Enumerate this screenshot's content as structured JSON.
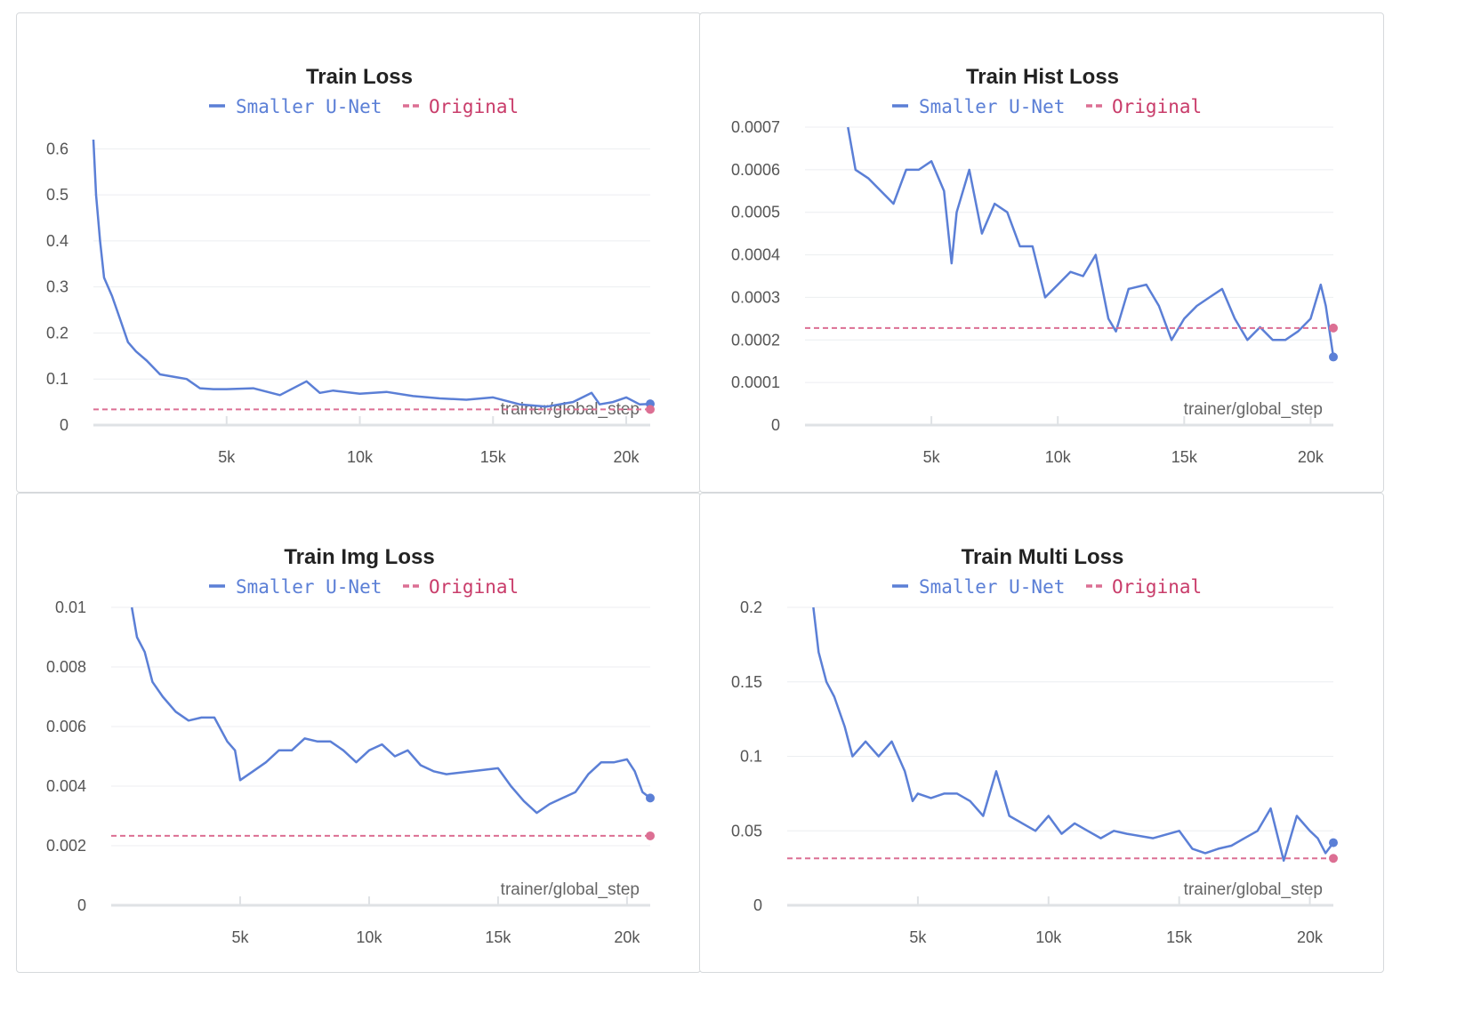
{
  "legend": {
    "series_a": "Smaller U-Net",
    "series_b": "Original"
  },
  "colors": {
    "series_a": "#5b7fd6",
    "series_b": "#dc6f93",
    "series_b_text": "#c93c6a",
    "grid": "#eceef0",
    "axis": "#dfe2e5"
  },
  "chart_data": [
    {
      "type": "line",
      "title": "Train Loss",
      "xlabel": "trainer/global_step",
      "xlim": [
        0,
        20900
      ],
      "ylim": [
        0,
        0.62
      ],
      "xticks": [
        {
          "v": 5000,
          "label": "5k"
        },
        {
          "v": 10000,
          "label": "10k"
        },
        {
          "v": 15000,
          "label": "15k"
        },
        {
          "v": 20000,
          "label": "20k"
        }
      ],
      "yticks": [
        {
          "v": 0,
          "label": "0"
        },
        {
          "v": 0.1,
          "label": "0.1"
        },
        {
          "v": 0.2,
          "label": "0.2"
        },
        {
          "v": 0.3,
          "label": "0.3"
        },
        {
          "v": 0.4,
          "label": "0.4"
        },
        {
          "v": 0.5,
          "label": "0.5"
        },
        {
          "v": 0.6,
          "label": "0.6"
        }
      ],
      "series": [
        {
          "name": "Smaller U-Net",
          "x": [
            0,
            100,
            250,
            400,
            700,
            1000,
            1300,
            1600,
            2000,
            2500,
            3000,
            3500,
            4000,
            4500,
            5000,
            6000,
            7000,
            8000,
            8500,
            9000,
            10000,
            11000,
            12000,
            13000,
            14000,
            15000,
            16000,
            17000,
            18000,
            18700,
            19000,
            19500,
            20000,
            20500,
            20900
          ],
          "y": [
            0.62,
            0.5,
            0.4,
            0.32,
            0.28,
            0.23,
            0.18,
            0.16,
            0.14,
            0.11,
            0.105,
            0.1,
            0.08,
            0.078,
            0.078,
            0.08,
            0.065,
            0.095,
            0.07,
            0.075,
            0.068,
            0.072,
            0.063,
            0.058,
            0.055,
            0.06,
            0.045,
            0.04,
            0.05,
            0.07,
            0.045,
            0.05,
            0.06,
            0.045,
            0.046
          ],
          "color": "#5b7fd6",
          "dashed": false
        },
        {
          "name": "Original",
          "x": [
            0,
            20900
          ],
          "y": [
            0.034,
            0.034
          ],
          "color": "#dc6f93",
          "dashed": true
        }
      ]
    },
    {
      "type": "line",
      "title": "Train Hist Loss",
      "xlabel": "trainer/global_step",
      "xlim": [
        0,
        20900
      ],
      "ylim": [
        0,
        0.0007
      ],
      "xticks": [
        {
          "v": 5000,
          "label": "5k"
        },
        {
          "v": 10000,
          "label": "10k"
        },
        {
          "v": 15000,
          "label": "15k"
        },
        {
          "v": 20000,
          "label": "20k"
        }
      ],
      "yticks": [
        {
          "v": 0,
          "label": "0"
        },
        {
          "v": 0.0001,
          "label": "0.0001"
        },
        {
          "v": 0.0002,
          "label": "0.0002"
        },
        {
          "v": 0.0003,
          "label": "0.0003"
        },
        {
          "v": 0.0004,
          "label": "0.0004"
        },
        {
          "v": 0.0005,
          "label": "0.0005"
        },
        {
          "v": 0.0006,
          "label": "0.0006"
        },
        {
          "v": 0.0007,
          "label": "0.0007"
        }
      ],
      "series": [
        {
          "name": "Smaller U-Net",
          "x": [
            1700,
            2000,
            2500,
            3000,
            3500,
            4000,
            4500,
            5000,
            5500,
            5800,
            6000,
            6500,
            7000,
            7500,
            8000,
            8500,
            9000,
            9500,
            10000,
            10500,
            11000,
            11500,
            12000,
            12300,
            12800,
            13500,
            14000,
            14500,
            15000,
            15500,
            16000,
            16500,
            17000,
            17500,
            18000,
            18500,
            19000,
            19500,
            20000,
            20400,
            20600,
            20900
          ],
          "y": [
            0.0007,
            0.0006,
            0.00058,
            0.00055,
            0.00052,
            0.0006,
            0.0006,
            0.00062,
            0.00055,
            0.00038,
            0.0005,
            0.0006,
            0.00045,
            0.00052,
            0.0005,
            0.00042,
            0.00042,
            0.0003,
            0.00033,
            0.00036,
            0.00035,
            0.0004,
            0.00025,
            0.00022,
            0.00032,
            0.00033,
            0.00028,
            0.0002,
            0.00025,
            0.00028,
            0.0003,
            0.00032,
            0.00025,
            0.0002,
            0.00023,
            0.0002,
            0.0002,
            0.00022,
            0.00025,
            0.00033,
            0.00028,
            0.00016
          ],
          "color": "#5b7fd6",
          "dashed": false
        },
        {
          "name": "Original",
          "x": [
            0,
            20900
          ],
          "y": [
            0.000228,
            0.000228
          ],
          "color": "#dc6f93",
          "dashed": true
        }
      ]
    },
    {
      "type": "line",
      "title": "Train Img Loss",
      "xlabel": "trainer/global_step",
      "xlim": [
        0,
        20900
      ],
      "ylim": [
        0,
        0.01
      ],
      "xticks": [
        {
          "v": 5000,
          "label": "5k"
        },
        {
          "v": 10000,
          "label": "10k"
        },
        {
          "v": 15000,
          "label": "15k"
        },
        {
          "v": 20000,
          "label": "20k"
        }
      ],
      "yticks": [
        {
          "v": 0,
          "label": "0"
        },
        {
          "v": 0.002,
          "label": "0.002"
        },
        {
          "v": 0.004,
          "label": "0.004"
        },
        {
          "v": 0.006,
          "label": "0.006"
        },
        {
          "v": 0.008,
          "label": "0.008"
        },
        {
          "v": 0.01,
          "label": "0.01"
        }
      ],
      "series": [
        {
          "name": "Smaller U-Net",
          "x": [
            800,
            1000,
            1300,
            1600,
            2000,
            2500,
            3000,
            3500,
            4000,
            4500,
            4800,
            5000,
            5500,
            6000,
            6500,
            7000,
            7500,
            8000,
            8500,
            9000,
            9500,
            10000,
            10500,
            11000,
            11500,
            12000,
            12500,
            13000,
            14000,
            15000,
            15500,
            16000,
            16500,
            17000,
            17500,
            18000,
            18500,
            19000,
            19500,
            20000,
            20300,
            20600,
            20900
          ],
          "y": [
            0.01,
            0.009,
            0.0085,
            0.0075,
            0.007,
            0.0065,
            0.0062,
            0.0063,
            0.0063,
            0.0055,
            0.0052,
            0.0042,
            0.0045,
            0.0048,
            0.0052,
            0.0052,
            0.0056,
            0.0055,
            0.0055,
            0.0052,
            0.0048,
            0.0052,
            0.0054,
            0.005,
            0.0052,
            0.0047,
            0.0045,
            0.0044,
            0.0045,
            0.0046,
            0.004,
            0.0035,
            0.0031,
            0.0034,
            0.0036,
            0.0038,
            0.0044,
            0.0048,
            0.0048,
            0.0049,
            0.0045,
            0.0038,
            0.0036
          ],
          "color": "#5b7fd6",
          "dashed": false
        },
        {
          "name": "Original",
          "x": [
            0,
            20900
          ],
          "y": [
            0.00233,
            0.00233
          ],
          "color": "#dc6f93",
          "dashed": true
        }
      ]
    },
    {
      "type": "line",
      "title": "Train Multi Loss",
      "xlabel": "trainer/global_step",
      "xlim": [
        0,
        20900
      ],
      "ylim": [
        0,
        0.2
      ],
      "xticks": [
        {
          "v": 5000,
          "label": "5k"
        },
        {
          "v": 10000,
          "label": "10k"
        },
        {
          "v": 15000,
          "label": "15k"
        },
        {
          "v": 20000,
          "label": "20k"
        }
      ],
      "yticks": [
        {
          "v": 0,
          "label": "0"
        },
        {
          "v": 0.05,
          "label": "0.05"
        },
        {
          "v": 0.1,
          "label": "0.1"
        },
        {
          "v": 0.15,
          "label": "0.15"
        },
        {
          "v": 0.2,
          "label": "0.2"
        }
      ],
      "series": [
        {
          "name": "Smaller U-Net",
          "x": [
            1000,
            1200,
            1500,
            1800,
            2200,
            2500,
            3000,
            3500,
            4000,
            4500,
            4800,
            5000,
            5500,
            6000,
            6500,
            7000,
            7500,
            8000,
            8500,
            9000,
            9500,
            10000,
            10500,
            11000,
            11500,
            12000,
            12500,
            13000,
            14000,
            15000,
            15500,
            16000,
            16500,
            17000,
            17500,
            18000,
            18500,
            19000,
            19500,
            20000,
            20300,
            20600,
            20900
          ],
          "y": [
            0.2,
            0.17,
            0.15,
            0.14,
            0.12,
            0.1,
            0.11,
            0.1,
            0.11,
            0.09,
            0.07,
            0.075,
            0.072,
            0.075,
            0.075,
            0.07,
            0.06,
            0.09,
            0.06,
            0.055,
            0.05,
            0.06,
            0.048,
            0.055,
            0.05,
            0.045,
            0.05,
            0.048,
            0.045,
            0.05,
            0.038,
            0.035,
            0.038,
            0.04,
            0.045,
            0.05,
            0.065,
            0.03,
            0.06,
            0.05,
            0.045,
            0.035,
            0.042
          ],
          "color": "#5b7fd6",
          "dashed": false
        },
        {
          "name": "Original",
          "x": [
            0,
            20900
          ],
          "y": [
            0.0315,
            0.0315
          ],
          "color": "#dc6f93",
          "dashed": true
        }
      ]
    }
  ]
}
